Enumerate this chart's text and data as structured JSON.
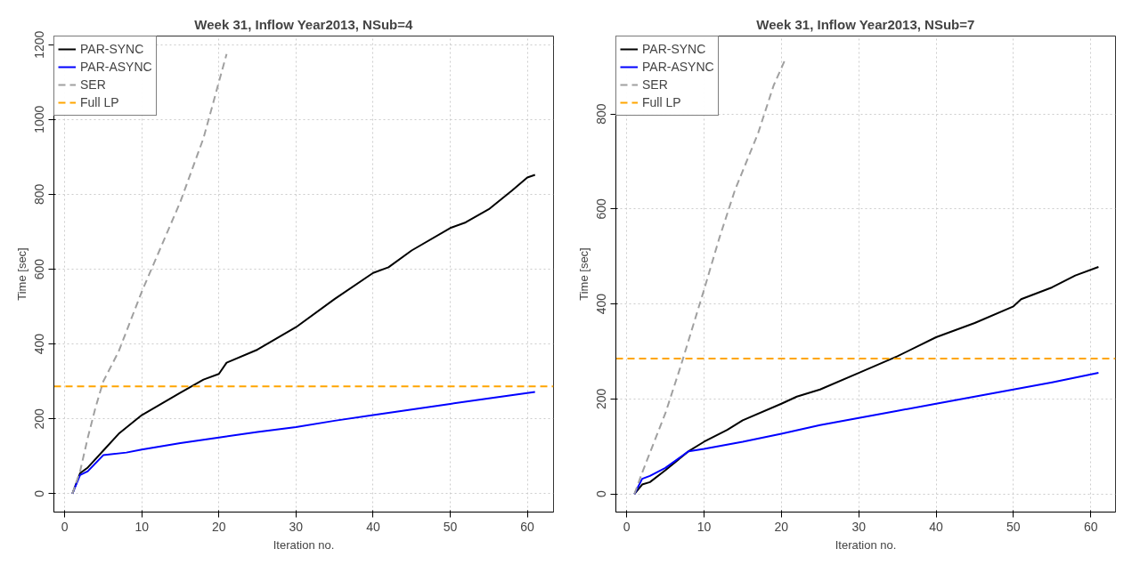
{
  "chart_data": [
    {
      "type": "line",
      "title": "Week 31, Inflow Year2013, NSub=4",
      "xlabel": "Iteration no.",
      "ylabel": "Time [sec]",
      "xlim": [
        -1.4,
        63.4
      ],
      "ylim": [
        -49,
        1223
      ],
      "xticks": [
        0,
        10,
        20,
        30,
        40,
        50,
        60
      ],
      "yticks": [
        0,
        200,
        400,
        600,
        800,
        1000,
        1200
      ],
      "grid": true,
      "legend": "top left",
      "series": [
        {
          "name": "PAR-SYNC",
          "color": "#000000",
          "line_style": "solid",
          "x": [
            1,
            2,
            3,
            5,
            7,
            10,
            15,
            18,
            20,
            21,
            25,
            30,
            35,
            40,
            42,
            45,
            50,
            52,
            55,
            58,
            60,
            61
          ],
          "values": [
            0,
            55,
            70,
            115,
            160,
            210,
            270,
            305,
            320,
            350,
            385,
            445,
            520,
            590,
            605,
            650,
            710,
            725,
            760,
            810,
            845,
            852
          ]
        },
        {
          "name": "PAR-ASYNC",
          "color": "#0000ff",
          "line_style": "solid",
          "x": [
            1,
            2,
            3,
            5,
            8,
            10,
            15,
            20,
            25,
            30,
            35,
            40,
            45,
            50,
            55,
            61
          ],
          "values": [
            0,
            50,
            60,
            103,
            110,
            118,
            135,
            150,
            165,
            178,
            195,
            210,
            225,
            240,
            255,
            272
          ]
        },
        {
          "name": "SER",
          "color": "#a0a0a0",
          "line_style": "dashed",
          "x": [
            1,
            2,
            3,
            4,
            5,
            7,
            10,
            15,
            18,
            21
          ],
          "values": [
            0,
            60,
            150,
            230,
            300,
            380,
            540,
            780,
            950,
            1175
          ]
        }
      ],
      "ref_lines": [
        {
          "axis": "y",
          "value": 287,
          "label": "Full LP",
          "color": "#ffa500",
          "line_style": "dashed"
        }
      ]
    },
    {
      "type": "line",
      "title": "Week 31, Inflow Year2013, NSub=7",
      "xlabel": "Iteration no.",
      "ylabel": "Time [sec]",
      "xlim": [
        -1.4,
        63.2
      ],
      "ylim": [
        -38,
        964
      ],
      "xticks": [
        0,
        10,
        20,
        30,
        40,
        50,
        60
      ],
      "yticks": [
        0,
        200,
        400,
        600,
        800
      ],
      "grid": true,
      "legend": "top left",
      "series": [
        {
          "name": "PAR-SYNC",
          "color": "#000000",
          "line_style": "solid",
          "x": [
            1,
            2,
            3,
            5,
            8,
            10,
            13,
            15,
            20,
            22,
            25,
            30,
            35,
            40,
            45,
            50,
            51,
            55,
            58,
            61
          ],
          "values": [
            0,
            20,
            25,
            50,
            90,
            110,
            135,
            155,
            190,
            205,
            220,
            255,
            290,
            330,
            360,
            395,
            410,
            435,
            460,
            478
          ]
        },
        {
          "name": "PAR-ASYNC",
          "color": "#0000ff",
          "line_style": "solid",
          "x": [
            1,
            2,
            3,
            5,
            8,
            10,
            15,
            20,
            25,
            30,
            35,
            40,
            45,
            50,
            55,
            61
          ],
          "values": [
            0,
            32,
            38,
            55,
            90,
            95,
            110,
            127,
            145,
            160,
            175,
            190,
            205,
            220,
            235,
            255
          ]
        },
        {
          "name": "SER",
          "color": "#a0a0a0",
          "line_style": "dashed",
          "x": [
            1,
            2,
            5,
            7,
            10,
            12,
            14,
            17,
            19,
            20.5
          ],
          "values": [
            0,
            45,
            170,
            270,
            430,
            540,
            640,
            760,
            860,
            915
          ]
        }
      ],
      "ref_lines": [
        {
          "axis": "y",
          "value": 285,
          "label": "Full LP",
          "color": "#ffa500",
          "line_style": "dashed"
        }
      ]
    }
  ]
}
